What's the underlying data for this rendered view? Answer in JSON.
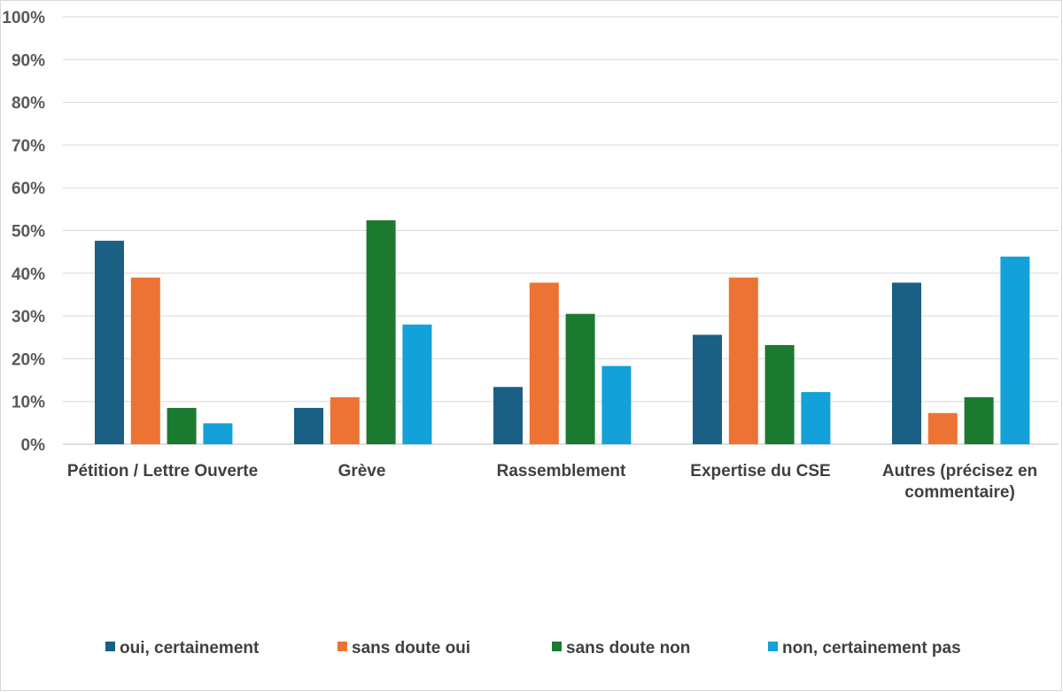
{
  "chart_data": {
    "type": "bar",
    "title": "",
    "xlabel": "",
    "ylabel": "",
    "ylim": [
      0,
      100
    ],
    "yticks": [
      "0%",
      "10%",
      "20%",
      "30%",
      "40%",
      "50%",
      "60%",
      "70%",
      "80%",
      "90%",
      "100%"
    ],
    "grid": true,
    "legend_position": "bottom",
    "categories": [
      [
        "Pétition / Lettre Ouverte"
      ],
      [
        "Grève"
      ],
      [
        "Rassemblement"
      ],
      [
        "Expertise du CSE"
      ],
      [
        "Autres (précisez en",
        "commentaire)"
      ]
    ],
    "series": [
      {
        "name": "oui, certainement",
        "color": "#1a5f84",
        "values": [
          47.6,
          8.5,
          13.4,
          25.6,
          37.8
        ]
      },
      {
        "name": "sans doute oui",
        "color": "#ec7333",
        "values": [
          39.0,
          11.0,
          37.8,
          39.0,
          7.3
        ]
      },
      {
        "name": "sans doute non",
        "color": "#1b7a2f",
        "values": [
          8.5,
          52.4,
          30.5,
          23.2,
          11.0
        ]
      },
      {
        "name": "non, certainement pas",
        "color": "#12a1d9",
        "values": [
          4.9,
          28.0,
          18.3,
          12.2,
          43.9
        ]
      }
    ]
  }
}
